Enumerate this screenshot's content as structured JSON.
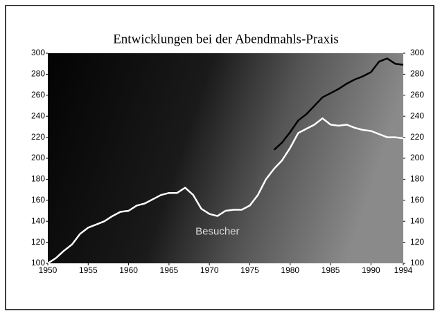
{
  "chart_data": {
    "type": "line",
    "title": "Entwicklungen bei der Abendmahls-Praxis",
    "x": [
      1950,
      1951,
      1952,
      1953,
      1954,
      1955,
      1956,
      1957,
      1958,
      1959,
      1960,
      1961,
      1962,
      1963,
      1964,
      1965,
      1966,
      1967,
      1968,
      1969,
      1970,
      1971,
      1972,
      1973,
      1974,
      1975,
      1976,
      1977,
      1978,
      1979,
      1980,
      1981,
      1982,
      1983,
      1984,
      1985,
      1986,
      1987,
      1988,
      1989,
      1990,
      1991,
      1992,
      1993,
      1994
    ],
    "series": [
      {
        "name": "Besucher",
        "color": "#ffffff",
        "values": [
          100,
          105,
          112,
          118,
          128,
          134,
          137,
          140,
          145,
          149,
          150,
          155,
          157,
          161,
          165,
          167,
          167,
          172,
          165,
          152,
          147,
          145,
          150,
          151,
          151,
          155,
          165,
          180,
          190,
          198,
          210,
          224,
          228,
          232,
          238,
          232,
          231,
          232,
          229,
          227,
          226,
          223,
          220,
          220,
          219
        ]
      },
      {
        "color": "#000000",
        "values": [
          null,
          null,
          null,
          null,
          null,
          null,
          null,
          null,
          null,
          null,
          null,
          null,
          null,
          null,
          null,
          null,
          null,
          null,
          null,
          null,
          null,
          null,
          null,
          null,
          null,
          null,
          null,
          null,
          208,
          215,
          225,
          236,
          242,
          250,
          258,
          262,
          266,
          271,
          275,
          278,
          282,
          292,
          295,
          290,
          289
        ]
      }
    ],
    "xlim": [
      1950,
      1994
    ],
    "xticks": [
      1950,
      1955,
      1960,
      1965,
      1970,
      1975,
      1980,
      1985,
      1990,
      1994
    ],
    "ylim": [
      100,
      300
    ],
    "yticks": [
      100,
      120,
      140,
      160,
      180,
      200,
      220,
      240,
      260,
      280,
      300
    ],
    "y2lim": [
      100,
      300
    ],
    "y2ticks": [
      100,
      120,
      140,
      160,
      180,
      200,
      220,
      240,
      260,
      280,
      300
    ]
  }
}
